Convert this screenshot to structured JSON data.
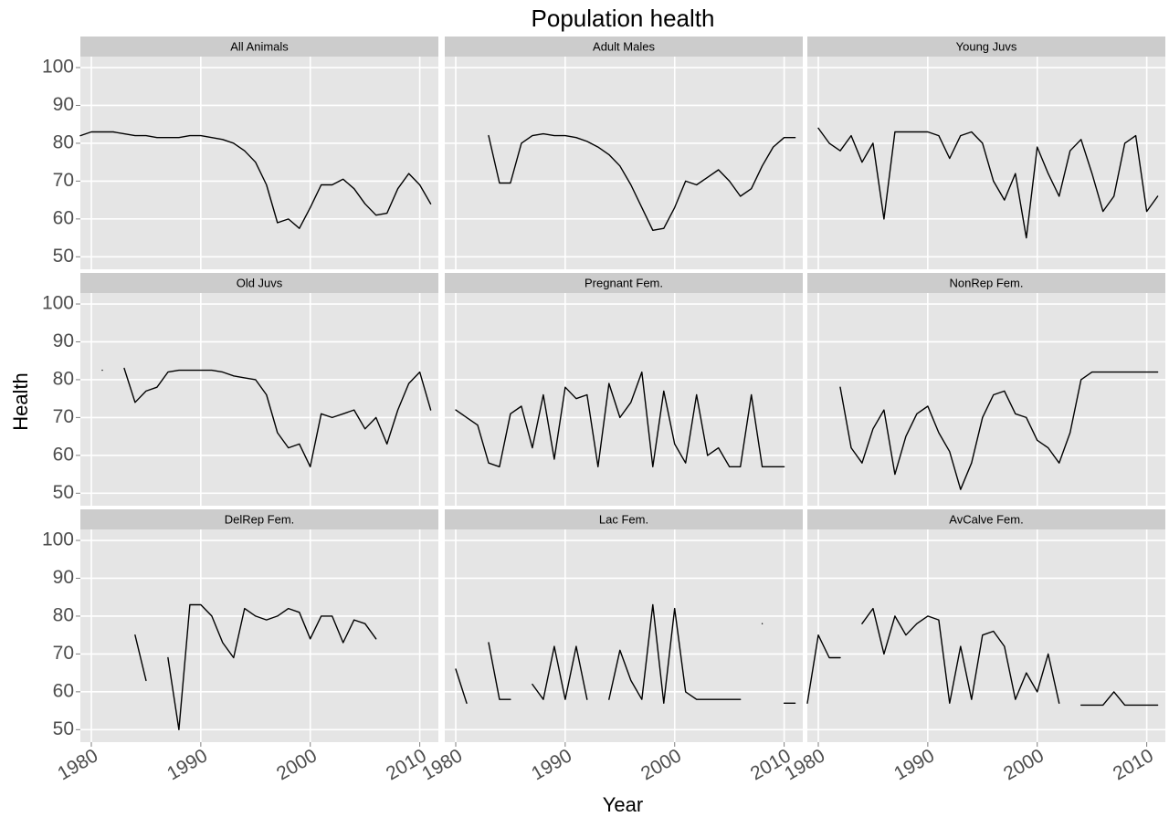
{
  "chart_data": {
    "type": "line",
    "title": "Population health",
    "x_label": "Year",
    "y_label": "Health",
    "xlim": [
      1979,
      2011.7
    ],
    "ylim": [
      46.7,
      102.9
    ],
    "xticks": [
      1980,
      1990,
      2000,
      2010
    ],
    "yticks": [
      50,
      60,
      70,
      80,
      90,
      100
    ],
    "grid": true,
    "color": "#000000",
    "x": [
      1979,
      1980,
      1981,
      1982,
      1983,
      1984,
      1985,
      1986,
      1987,
      1988,
      1989,
      1990,
      1991,
      1992,
      1993,
      1994,
      1995,
      1996,
      1997,
      1998,
      1999,
      2000,
      2001,
      2002,
      2003,
      2004,
      2005,
      2006,
      2007,
      2008,
      2009,
      2010,
      2011
    ],
    "facets": [
      {
        "name": "All Animals",
        "values": [
          82,
          83,
          83,
          83,
          82.5,
          82,
          82,
          81.5,
          81.5,
          81.5,
          82,
          82,
          81.5,
          81,
          80,
          78,
          75,
          69,
          59,
          60,
          57.5,
          63,
          69,
          69,
          70.5,
          68,
          64,
          61,
          61.5,
          68,
          72,
          69,
          64
        ]
      },
      {
        "name": "Adult Males",
        "values": [
          null,
          null,
          null,
          null,
          82,
          69.5,
          69.5,
          80,
          82,
          82.5,
          82,
          82,
          81.5,
          80.5,
          79,
          77,
          74,
          69,
          63,
          57,
          57.5,
          63,
          70,
          69,
          71,
          73,
          70,
          66,
          68,
          74,
          79,
          81.5,
          81.5
        ]
      },
      {
        "name": "Young Juvs",
        "values": [
          null,
          84,
          80,
          78,
          82,
          75,
          80,
          60,
          83,
          83,
          83,
          83,
          82,
          76,
          82,
          83,
          80,
          70,
          65,
          72,
          55,
          79,
          72,
          66,
          78,
          81,
          72,
          62,
          66,
          80,
          82,
          62,
          66
        ]
      },
      {
        "name": "Old Juvs",
        "values": [
          null,
          null,
          82.5,
          null,
          83,
          74,
          77,
          78,
          82,
          82.5,
          82.5,
          82.5,
          82.5,
          82,
          81,
          80.5,
          80,
          76,
          66,
          62,
          63,
          57,
          71,
          70,
          71,
          72,
          67,
          70,
          63,
          72,
          79,
          82,
          72
        ]
      },
      {
        "name": "Pregnant Fem.",
        "values": [
          null,
          72,
          70,
          68,
          58,
          57,
          71,
          73,
          62,
          76,
          59,
          78,
          75,
          76,
          57,
          79,
          70,
          74,
          82,
          57,
          77,
          63,
          58,
          76,
          60,
          62,
          57,
          57,
          76,
          57,
          57,
          57,
          null
        ]
      },
      {
        "name": "NonRep Fem.",
        "values": [
          null,
          null,
          null,
          78,
          62,
          58,
          67,
          72,
          55,
          65,
          71,
          73,
          66,
          61,
          51,
          58,
          70,
          76,
          77,
          71,
          70,
          64,
          62,
          58,
          66,
          80,
          82,
          82,
          82,
          82,
          82,
          82,
          82
        ]
      },
      {
        "name": "DelRep Fem.",
        "values": [
          null,
          null,
          null,
          null,
          null,
          75,
          63,
          null,
          69,
          50,
          83,
          83,
          80,
          73,
          69,
          82,
          80,
          79,
          80,
          82,
          81,
          74,
          80,
          80,
          73,
          79,
          78,
          74,
          null,
          null,
          null,
          null,
          null
        ]
      },
      {
        "name": "Lac Fem.",
        "values": [
          null,
          66,
          57,
          null,
          73,
          58,
          58,
          null,
          62,
          58,
          72,
          58,
          72,
          58,
          null,
          58,
          71,
          63,
          58,
          83,
          57,
          82,
          60,
          58,
          58,
          58,
          58,
          58,
          null,
          78,
          null,
          57,
          57
        ]
      },
      {
        "name": "AvCalve Fem.",
        "values": [
          57,
          75,
          69,
          69,
          null,
          78,
          82,
          70,
          80,
          75,
          78,
          80,
          79,
          57,
          72,
          58,
          75,
          76,
          72,
          58,
          65,
          60,
          70,
          57,
          null,
          56.5,
          56.5,
          56.5,
          60,
          56.5,
          56.5,
          56.5,
          56.5
        ]
      }
    ]
  }
}
